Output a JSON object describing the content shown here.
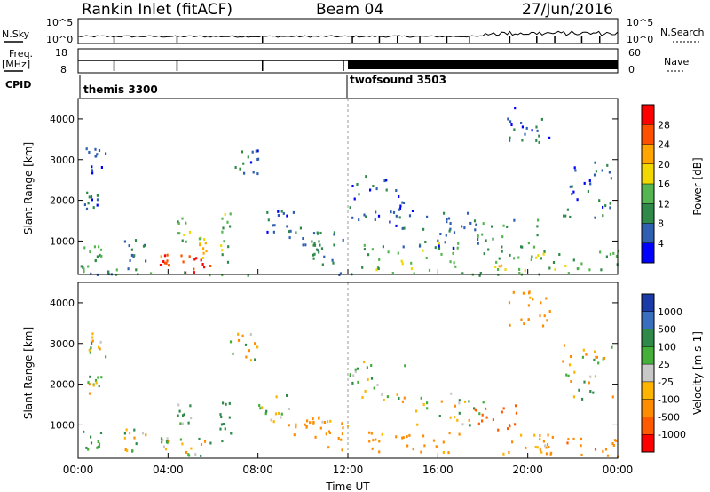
{
  "header": {
    "station": "Rankin Inlet (fitACF)",
    "beam": "Beam 04",
    "date": "27/Jun/2016"
  },
  "left_labels": {
    "nsky": "N.Sky",
    "freq": "Freq.",
    "freq_unit": "[MHz]",
    "cpid": "CPID"
  },
  "right_labels": {
    "nsearch": "N.Search",
    "nave": "Nave"
  },
  "nsky_panel": {
    "ticks_left": [
      "10^5",
      "10^0"
    ],
    "ticks_right": [
      "10^5",
      "10^0"
    ]
  },
  "freq_panel": {
    "ticks_left": [
      "18",
      "8"
    ],
    "ticks_right": [
      "60",
      "0"
    ]
  },
  "cpid": [
    {
      "name": "themis 3300",
      "start_hour": 0
    },
    {
      "name": "twofsound 3503",
      "start_hour": 12
    }
  ],
  "colors": {
    "power_scale": [
      "#0000ff",
      "#2e5fb0",
      "#2f8a4a",
      "#55b550",
      "#f0d800",
      "#ffa500",
      "#ff5000",
      "#ff0000"
    ],
    "velocity_scale": [
      "#ff0000",
      "#ff5a00",
      "#ff8c00",
      "#ffb400",
      "#c8c8c8",
      "#44b03a",
      "#2f8a4a",
      "#3a6fc0",
      "#1a3aa8"
    ]
  },
  "chart_data": [
    {
      "type": "heatmap",
      "title": "Power",
      "xlabel": "Time UT",
      "ylabel": "Slant Range [km]",
      "xlim": [
        0,
        24
      ],
      "ylim": [
        180,
        4500
      ],
      "x_ticks": [
        "00:00",
        "04:00",
        "08:00",
        "12:00",
        "16:00",
        "20:00",
        "00:00"
      ],
      "y_ticks": [
        1000,
        2000,
        3000,
        4000
      ],
      "colorbar": {
        "label": "Power [dB]",
        "ticks": [
          4,
          8,
          12,
          16,
          20,
          24,
          28
        ],
        "range": [
          0,
          30
        ]
      },
      "regions": [
        {
          "t": [
            0.2,
            1.0
          ],
          "r": [
            1800,
            2300
          ],
          "v": 6
        },
        {
          "t": [
            0.3,
            1.2
          ],
          "r": [
            2700,
            3300
          ],
          "v": 5
        },
        {
          "t": [
            0.2,
            1.0
          ],
          "r": [
            500,
            900
          ],
          "v": 12
        },
        {
          "t": [
            0.0,
            2.0
          ],
          "r": [
            200,
            500
          ],
          "v": 9
        },
        {
          "t": [
            2.0,
            3.0
          ],
          "r": [
            300,
            1100
          ],
          "v": 8
        },
        {
          "t": [
            3.6,
            4.0
          ],
          "r": [
            400,
            700
          ],
          "v": 24
        },
        {
          "t": [
            4.5,
            5.9
          ],
          "r": [
            250,
            700
          ],
          "v": 26
        },
        {
          "t": [
            4.4,
            5.0
          ],
          "r": [
            1000,
            1600
          ],
          "v": 14
        },
        {
          "t": [
            5.3,
            5.7
          ],
          "r": [
            600,
            1200
          ],
          "v": 18
        },
        {
          "t": [
            6.2,
            6.8
          ],
          "r": [
            500,
            1700
          ],
          "v": 12
        },
        {
          "t": [
            6.7,
            8.0
          ],
          "r": [
            2600,
            3300
          ],
          "v": 6
        },
        {
          "t": [
            8.0,
            9.6
          ],
          "r": [
            1200,
            1800
          ],
          "v": 7
        },
        {
          "t": [
            9.2,
            10.8
          ],
          "r": [
            800,
            1400
          ],
          "v": 8
        },
        {
          "t": [
            10.4,
            12.0
          ],
          "r": [
            400,
            1300
          ],
          "v": 8
        },
        {
          "t": [
            12.0,
            14.5
          ],
          "r": [
            1500,
            2700
          ],
          "v": 6
        },
        {
          "t": [
            12.5,
            17.0
          ],
          "r": [
            300,
            1000
          ],
          "v": 13
        },
        {
          "t": [
            14.0,
            18.0
          ],
          "r": [
            800,
            1800
          ],
          "v": 6
        },
        {
          "t": [
            17.5,
            20.5
          ],
          "r": [
            600,
            1600
          ],
          "v": 9
        },
        {
          "t": [
            18.5,
            20.5
          ],
          "r": [
            300,
            700
          ],
          "v": 16
        },
        {
          "t": [
            21.5,
            23.8
          ],
          "r": [
            1600,
            3000
          ],
          "v": 7
        },
        {
          "t": [
            20.5,
            24.0
          ],
          "r": [
            250,
            800
          ],
          "v": 12
        },
        {
          "t": [
            19.0,
            21.0
          ],
          "r": [
            3400,
            4300
          ],
          "v": 6
        },
        {
          "t": [
            0.0,
            24.0
          ],
          "r": [
            180,
            260
          ],
          "v": 10
        }
      ]
    },
    {
      "type": "heatmap",
      "title": "Velocity",
      "xlabel": "Time UT",
      "ylabel": "Slant Range [km]",
      "xlim": [
        0,
        24
      ],
      "ylim": [
        180,
        4500
      ],
      "x_ticks": [
        "00:00",
        "04:00",
        "08:00",
        "12:00",
        "16:00",
        "20:00",
        "00:00"
      ],
      "y_ticks": [
        1000,
        2000,
        3000,
        4000
      ],
      "colorbar": {
        "label": "Velocity [m s-1]",
        "ticks": [
          1000,
          500,
          100,
          25,
          -25,
          -100,
          -500,
          -1000
        ],
        "range": [
          -1200,
          1200
        ]
      },
      "regions": [
        {
          "t": [
            0.2,
            1.0
          ],
          "r": [
            1800,
            2300
          ],
          "v": 0
        },
        {
          "t": [
            0.3,
            1.2
          ],
          "r": [
            2700,
            3300
          ],
          "v": 0
        },
        {
          "t": [
            0.2,
            1.0
          ],
          "r": [
            400,
            900
          ],
          "v": 200
        },
        {
          "t": [
            2.0,
            3.0
          ],
          "r": [
            300,
            1000
          ],
          "v": 0
        },
        {
          "t": [
            3.6,
            4.0
          ],
          "r": [
            400,
            700
          ],
          "v": 0
        },
        {
          "t": [
            4.5,
            5.9
          ],
          "r": [
            250,
            700
          ],
          "v": 0
        },
        {
          "t": [
            4.4,
            5.0
          ],
          "r": [
            1000,
            1600
          ],
          "v": 150
        },
        {
          "t": [
            6.2,
            6.8
          ],
          "r": [
            500,
            1600
          ],
          "v": 250
        },
        {
          "t": [
            6.7,
            8.0
          ],
          "r": [
            2600,
            3300
          ],
          "v": 0
        },
        {
          "t": [
            8.0,
            9.6
          ],
          "r": [
            1100,
            1800
          ],
          "v": 0
        },
        {
          "t": [
            9.2,
            10.8
          ],
          "r": [
            700,
            1300
          ],
          "v": -300
        },
        {
          "t": [
            10.4,
            12.0
          ],
          "r": [
            400,
            1200
          ],
          "v": -150
        },
        {
          "t": [
            12.0,
            14.5
          ],
          "r": [
            1600,
            2600
          ],
          "v": 0
        },
        {
          "t": [
            12.5,
            17.0
          ],
          "r": [
            300,
            900
          ],
          "v": -200
        },
        {
          "t": [
            15.0,
            18.0
          ],
          "r": [
            1000,
            1800
          ],
          "v": 0
        },
        {
          "t": [
            17.5,
            19.5
          ],
          "r": [
            900,
            1600
          ],
          "v": -700
        },
        {
          "t": [
            18.5,
            21.0
          ],
          "r": [
            300,
            800
          ],
          "v": -150
        },
        {
          "t": [
            21.5,
            23.8
          ],
          "r": [
            1600,
            3000
          ],
          "v": 0
        },
        {
          "t": [
            20.5,
            24.0
          ],
          "r": [
            250,
            800
          ],
          "v": -400
        },
        {
          "t": [
            19.0,
            21.0
          ],
          "r": [
            3400,
            4300
          ],
          "v": -200
        }
      ]
    }
  ],
  "axis": {
    "xlabel": "Time UT"
  }
}
